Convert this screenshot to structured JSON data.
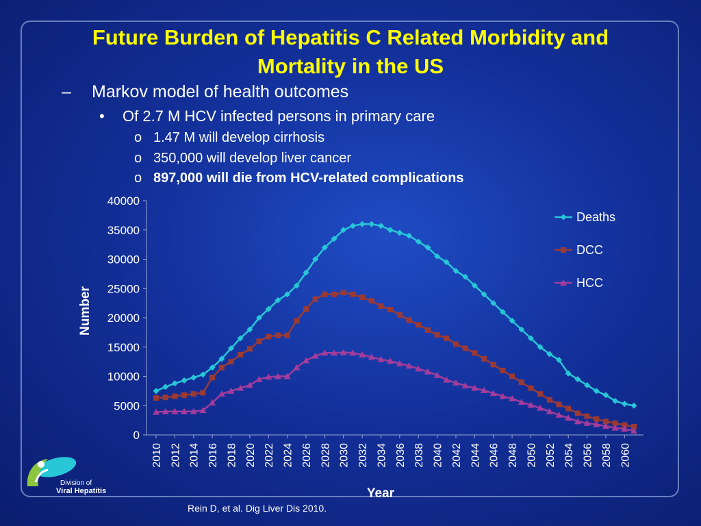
{
  "slide": {
    "title_line1": "Future Burden of Hepatitis C Related Morbidity and",
    "title_line2": "Mortality in the US",
    "bullet1_marker": "–",
    "bullet1": "Markov model of health outcomes",
    "bullet2_marker": "•",
    "bullet2": "Of 2.7 M HCV infected persons in primary care",
    "sub_marker": "o",
    "sub_bullets": [
      "1.47 M will develop cirrhosis",
      "350,000 will develop liver cancer",
      "897,000 will die from HCV-related complications"
    ],
    "citation": "Rein D, et al. Dig Liver Dis 2010.",
    "logo": {
      "line1": "Division of",
      "line2": "Viral Hepatitis"
    }
  },
  "colors": {
    "title": "#ffff00",
    "deaths": "#27c7d8",
    "dcc": "#9b3a34",
    "hcc": "#a33c9b"
  },
  "chart_data": {
    "type": "line",
    "xlabel": "Year",
    "ylabel": "Number",
    "ylim": [
      0,
      40000
    ],
    "yticks": [
      0,
      5000,
      10000,
      15000,
      20000,
      25000,
      30000,
      35000,
      40000
    ],
    "legend_position": "right",
    "x": [
      2010,
      2011,
      2012,
      2013,
      2014,
      2015,
      2016,
      2017,
      2018,
      2019,
      2020,
      2021,
      2022,
      2023,
      2024,
      2025,
      2026,
      2027,
      2028,
      2029,
      2030,
      2031,
      2032,
      2033,
      2034,
      2035,
      2036,
      2037,
      2038,
      2039,
      2040,
      2041,
      2042,
      2043,
      2044,
      2045,
      2046,
      2047,
      2048,
      2049,
      2050,
      2051,
      2052,
      2053,
      2054,
      2055,
      2056,
      2057,
      2058,
      2059,
      2060,
      2061
    ],
    "x_tick_labels": [
      "2010",
      "2012",
      "2014",
      "2016",
      "2018",
      "2020",
      "2022",
      "2024",
      "2026",
      "2028",
      "2030",
      "2032",
      "2034",
      "2036",
      "2038",
      "2040",
      "2042",
      "2044",
      "2046",
      "2048",
      "2050",
      "2052",
      "2054",
      "2056",
      "2058",
      "2060"
    ],
    "series": [
      {
        "name": "Deaths",
        "marker": "diamond",
        "values": [
          7500,
          8200,
          8800,
          9300,
          9800,
          10300,
          11500,
          13000,
          14800,
          16500,
          18000,
          20000,
          21500,
          23000,
          24000,
          25500,
          27700,
          30000,
          32000,
          33500,
          35000,
          35700,
          36000,
          36000,
          35700,
          35000,
          34500,
          34000,
          33000,
          32000,
          30500,
          29500,
          28000,
          27000,
          25500,
          24000,
          22500,
          21000,
          19500,
          18000,
          16500,
          15000,
          13800,
          12800,
          10500,
          9500,
          8500,
          7500,
          6800,
          5800,
          5300,
          5000
        ]
      },
      {
        "name": "DCC",
        "marker": "square",
        "values": [
          6300,
          6400,
          6600,
          6800,
          7000,
          7200,
          9800,
          11500,
          12500,
          13700,
          14700,
          16000,
          16800,
          17000,
          17000,
          19500,
          21500,
          23200,
          24000,
          24000,
          24300,
          24000,
          23500,
          22900,
          22000,
          21400,
          20500,
          19600,
          18800,
          17900,
          17100,
          16500,
          15500,
          14800,
          14000,
          13000,
          12000,
          11000,
          10000,
          9000,
          8000,
          7000,
          6000,
          5200,
          4500,
          3700,
          3200,
          2700,
          2300,
          2000,
          1700,
          1400
        ]
      },
      {
        "name": "HCC",
        "marker": "triangle",
        "values": [
          3900,
          4000,
          4000,
          4000,
          4000,
          4200,
          5500,
          7000,
          7500,
          8000,
          8500,
          9500,
          9900,
          10000,
          10000,
          11500,
          12700,
          13500,
          14000,
          14000,
          14100,
          14000,
          13700,
          13300,
          12900,
          12600,
          12200,
          11800,
          11300,
          10800,
          10200,
          9400,
          8900,
          8400,
          8000,
          7600,
          7100,
          6600,
          6200,
          5600,
          5100,
          4600,
          4000,
          3400,
          2900,
          2300,
          2000,
          1800,
          1500,
          1200,
          1000,
          700
        ]
      }
    ]
  }
}
